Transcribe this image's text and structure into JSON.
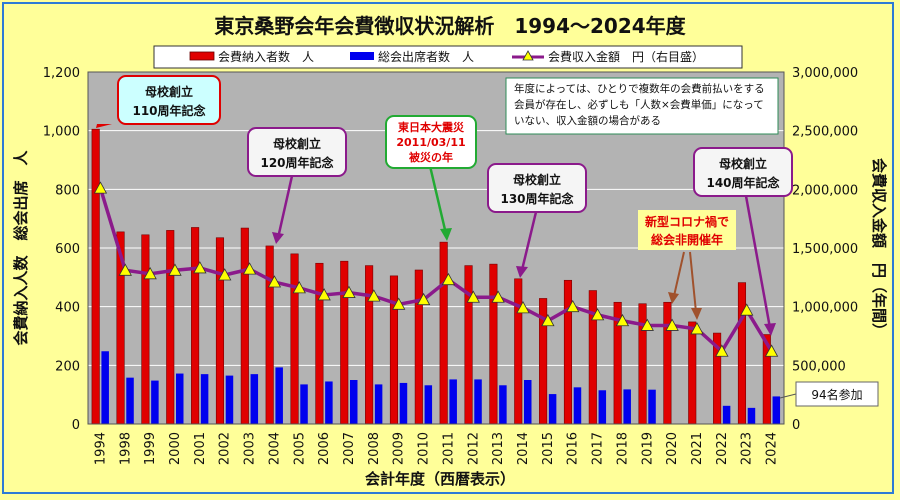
{
  "chart_data": {
    "type": "bar",
    "title": "東京桑野会年会費徴収状況解析　1994～2024年度",
    "xlabel": "会計年度（西暦表示）",
    "ylabel_left": "会費納入人数　総会出席　人",
    "ylabel_right": "会費収入金額　円（年間）",
    "categories": [
      "1994",
      "1998",
      "1999",
      "2000",
      "2001",
      "2002",
      "2003",
      "2004",
      "2005",
      "2006",
      "2007",
      "2008",
      "2009",
      "2010",
      "2011",
      "2012",
      "2013",
      "2014",
      "2015",
      "2016",
      "2017",
      "2018",
      "2019",
      "2020",
      "2021",
      "2022",
      "2023",
      "2024"
    ],
    "ylim_left": [
      0,
      1200
    ],
    "yticks_left": [
      "0",
      "200",
      "400",
      "600",
      "800",
      "1,000",
      "1,200"
    ],
    "ylim_right": [
      0,
      3000000
    ],
    "yticks_right": [
      "0",
      "500,000",
      "1,000,000",
      "1,500,000",
      "2,000,000",
      "2,500,000",
      "3,000,000"
    ],
    "legend": [
      "会費納入者数　人",
      "総会出席者数　人",
      "会費収入金額　円（右目盛）"
    ],
    "series": [
      {
        "name": "会費納入者数　人",
        "color": "#e00000",
        "values": [
          1005,
          655,
          645,
          660,
          670,
          635,
          668,
          607,
          580,
          548,
          555,
          540,
          505,
          525,
          620,
          540,
          545,
          495,
          428,
          490,
          455,
          415,
          410,
          415,
          348,
          310,
          482,
          305
        ]
      },
      {
        "name": "総会出席者数　人",
        "color": "#0000ee",
        "values": [
          248,
          158,
          148,
          172,
          170,
          165,
          170,
          193,
          135,
          145,
          150,
          135,
          140,
          132,
          152,
          152,
          132,
          150,
          102,
          125,
          115,
          118,
          117,
          0,
          0,
          62,
          55,
          94
        ]
      },
      {
        "name": "会費収入金額　円（右目盛）",
        "color": "#8b1a8b",
        "marker_color": "#ffff00",
        "values": [
          2010000,
          1310000,
          1280000,
          1310000,
          1330000,
          1270000,
          1320000,
          1210000,
          1160000,
          1100000,
          1120000,
          1090000,
          1020000,
          1060000,
          1230000,
          1080000,
          1080000,
          990000,
          880000,
          1000000,
          930000,
          880000,
          840000,
          840000,
          810000,
          620000,
          970000,
          620000
        ]
      }
    ],
    "annotations": [
      {
        "text": "母校創立\n110周年記念"
      },
      {
        "text": "母校創立\n120周年記念"
      },
      {
        "text": "東日本大震災\n2011/03/11\n被災の年"
      },
      {
        "text": "母校創立\n130周年記念"
      },
      {
        "text": "母校創立\n140周年記念"
      },
      {
        "text": "新型コロナ禍で\n総会非開催年"
      },
      {
        "text": "94名参加"
      }
    ],
    "note": "年度によっては、ひとりで複数年の会費前払いをする\n会員が存在し、必ずしも「人数×会費単価」になって\nいない、収入金額の場合がある"
  }
}
